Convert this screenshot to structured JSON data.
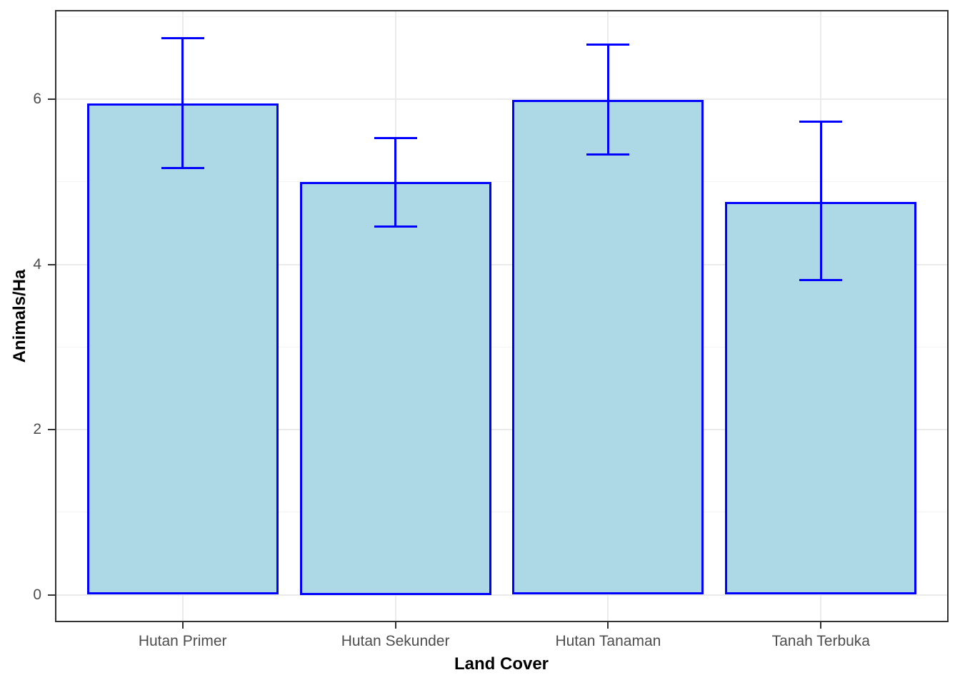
{
  "chart_data": {
    "type": "bar",
    "title": "",
    "xlabel": "Land Cover",
    "ylabel": "Animals/Ha",
    "categories": [
      "Hutan Primer",
      "Hutan Sekunder",
      "Hutan Tanaman",
      "Tanah Terbuka"
    ],
    "series": [
      {
        "name": "Animals/Ha",
        "values": [
          5.95,
          5.0,
          5.99,
          4.76
        ],
        "error_lower": [
          5.17,
          4.46,
          5.33,
          3.81
        ],
        "error_upper": [
          6.74,
          5.53,
          6.66,
          5.73
        ]
      }
    ],
    "yticks": [
      0,
      2,
      4,
      6
    ],
    "ytick_labels": [
      "0",
      "2",
      "4",
      "6"
    ],
    "yminor_ticks": [
      1,
      3,
      5,
      7
    ],
    "ylim": [
      -0.34,
      7.08
    ],
    "grid": "horizontal major+minor, vertical major at category centers",
    "legend": "none",
    "colors": {
      "bar_fill": "#ADD8E6",
      "bar_border": "#0000FF",
      "error_bar": "#0000FF",
      "panel_border": "#333333",
      "tick_label": "#4D4D4D",
      "axis_title": "#000000",
      "grid_major": "#EBEBEB",
      "grid_minor": "#F4F4F4"
    }
  }
}
